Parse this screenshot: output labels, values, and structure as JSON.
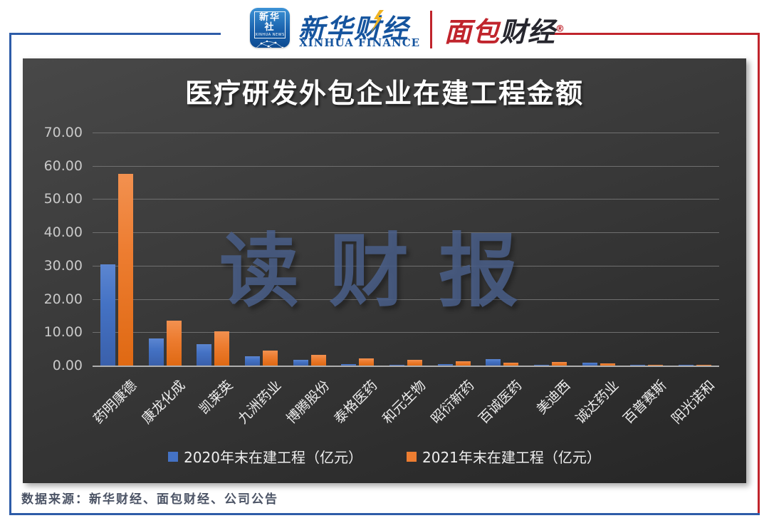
{
  "header": {
    "news_badge": {
      "cn": "新华社",
      "en": "XINHUA NEWS"
    },
    "finance": {
      "cn": "新华财经",
      "en": "XINHUA FINANCE"
    },
    "brand": {
      "cn_red": "面包",
      "cn_dark": "财经",
      "reg": "®"
    }
  },
  "colors": {
    "frame_blue": "#2e5ca8",
    "frame_red": "#c0242c",
    "panel_background": "#3a3a3a",
    "bar_2020_blue": "#4472c4",
    "bar_2021_orange": "#ed7d31",
    "watermark_blue": "#4a5f8a",
    "title_text": "#ffffff"
  },
  "chart_data": {
    "type": "bar",
    "title": "医疗研发外包企业在建工程金额",
    "watermark": "读财报",
    "categories": [
      "药明康德",
      "康龙化成",
      "凯莱英",
      "九洲药业",
      "博腾股份",
      "泰格医药",
      "和元生物",
      "昭衍新药",
      "百诚医药",
      "美迪西",
      "诚达药业",
      "百普赛斯",
      "阳光诺和"
    ],
    "series": [
      {
        "name": "2020年末在建工程（亿元）",
        "color": "#4472c4",
        "values": [
          30.5,
          8.1,
          6.5,
          2.8,
          1.7,
          0.5,
          0.2,
          0.5,
          1.9,
          0.1,
          0.8,
          0.2,
          0.05
        ]
      },
      {
        "name": "2021年末在建工程（亿元）",
        "color": "#ed7d31",
        "values": [
          57.5,
          13.5,
          10.3,
          4.5,
          3.2,
          2.1,
          1.7,
          1.3,
          0.9,
          1.1,
          0.65,
          0.15,
          0.3
        ]
      }
    ],
    "ylim": [
      0,
      70
    ],
    "yticks": [
      "70.00",
      "60.00",
      "50.00",
      "40.00",
      "30.00",
      "20.00",
      "10.00",
      "0.00"
    ],
    "grid": true,
    "legend_position": "bottom"
  },
  "footer": {
    "source": "数据来源：新华财经、面包财经、公司公告"
  }
}
